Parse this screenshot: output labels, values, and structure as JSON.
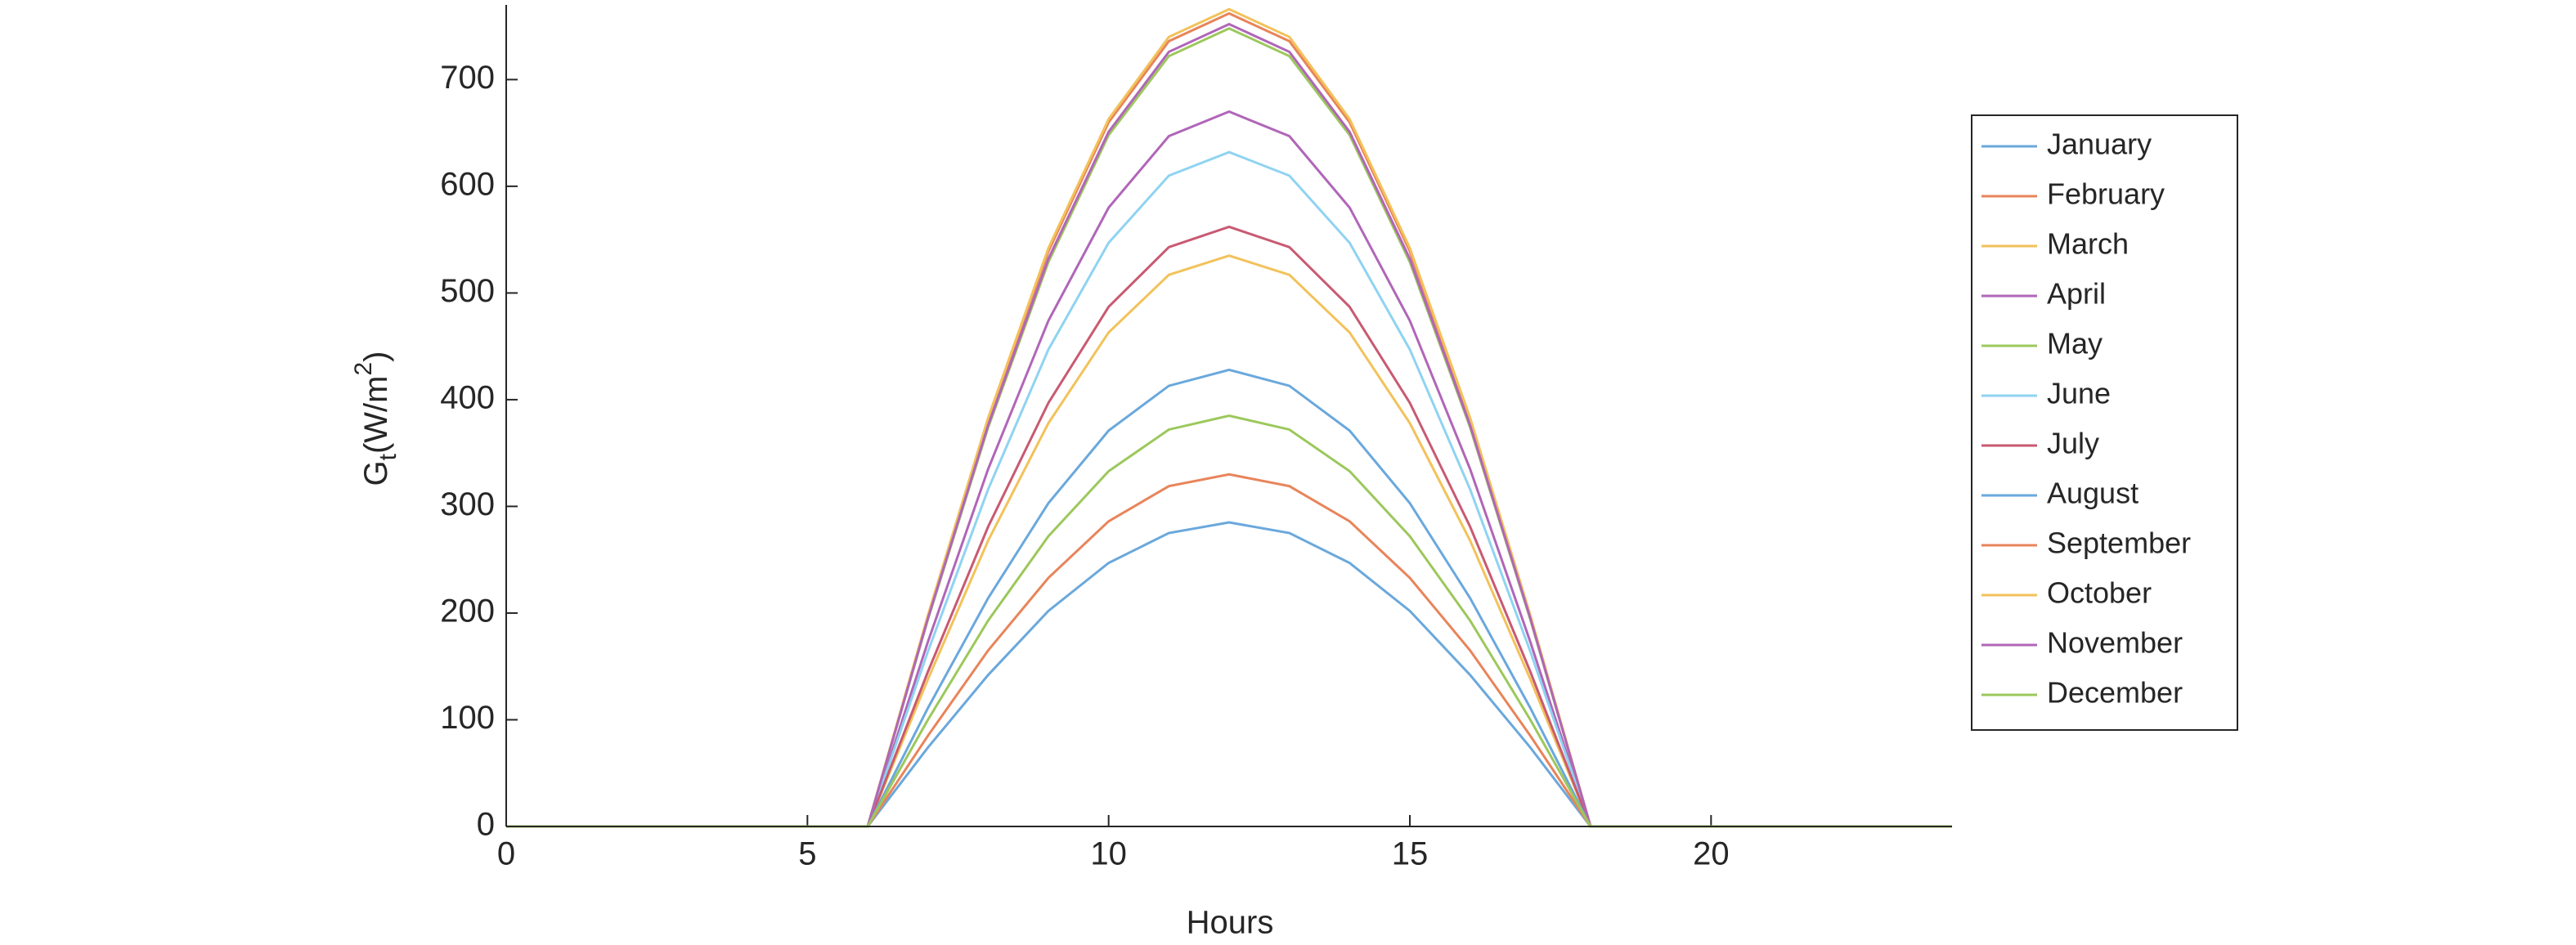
{
  "chart_data": {
    "type": "line",
    "x_label": "Hours",
    "y_label": [
      "G",
      "t",
      "(W/m",
      "2",
      ")"
    ],
    "x": [
      0,
      6,
      7,
      8,
      9,
      10,
      11,
      12,
      13,
      14,
      15,
      16,
      17,
      18,
      24
    ],
    "series": [
      {
        "name": "January",
        "color": "#6aa8dc",
        "values": [
          0,
          0,
          74,
          142,
          202,
          247,
          275,
          285,
          275,
          247,
          202,
          142,
          74,
          0,
          0
        ]
      },
      {
        "name": "February",
        "color": "#e8845a",
        "values": [
          0,
          0,
          85,
          165,
          233,
          286,
          319,
          330,
          319,
          286,
          233,
          165,
          85,
          0,
          0
        ]
      },
      {
        "name": "March",
        "color": "#f2c25a",
        "values": [
          0,
          0,
          138,
          268,
          378,
          463,
          517,
          535,
          517,
          463,
          378,
          268,
          138,
          0,
          0
        ]
      },
      {
        "name": "April",
        "color": "#b066b8",
        "values": [
          0,
          0,
          173,
          335,
          474,
          580,
          647,
          670,
          647,
          580,
          474,
          335,
          173,
          0,
          0
        ]
      },
      {
        "name": "May",
        "color": "#9cc85c",
        "values": [
          0,
          0,
          194,
          374,
          529,
          648,
          722,
          748,
          722,
          648,
          529,
          374,
          194,
          0,
          0
        ]
      },
      {
        "name": "June",
        "color": "#8fd3f2",
        "values": [
          0,
          0,
          164,
          316,
          447,
          547,
          610,
          632,
          610,
          547,
          447,
          316,
          164,
          0,
          0
        ]
      },
      {
        "name": "July",
        "color": "#c85a72",
        "values": [
          0,
          0,
          145,
          281,
          397,
          487,
          543,
          562,
          543,
          487,
          397,
          281,
          145,
          0,
          0
        ]
      },
      {
        "name": "August",
        "color": "#6aa8dc",
        "values": [
          0,
          0,
          111,
          214,
          303,
          371,
          413,
          428,
          413,
          371,
          303,
          214,
          111,
          0,
          0
        ]
      },
      {
        "name": "September",
        "color": "#e8845a",
        "values": [
          0,
          0,
          197,
          381,
          539,
          660,
          736,
          762,
          736,
          660,
          539,
          381,
          197,
          0,
          0
        ]
      },
      {
        "name": "October",
        "color": "#f2c25a",
        "values": [
          0,
          0,
          198,
          383,
          542,
          663,
          740,
          766,
          740,
          663,
          542,
          383,
          198,
          0,
          0
        ]
      },
      {
        "name": "November",
        "color": "#b066b8",
        "values": [
          0,
          0,
          195,
          376,
          532,
          651,
          726,
          752,
          726,
          651,
          532,
          376,
          195,
          0,
          0
        ]
      },
      {
        "name": "December",
        "color": "#9cc85c",
        "values": [
          0,
          0,
          100,
          193,
          272,
          333,
          372,
          385,
          372,
          333,
          272,
          193,
          100,
          0,
          0
        ]
      }
    ],
    "xlim": [
      0,
      24
    ],
    "xticks": [
      0,
      5,
      10,
      15,
      20
    ],
    "ylim": [
      0,
      770
    ],
    "yticks": [
      0,
      100,
      200,
      300,
      400,
      500,
      600,
      700
    ],
    "grid": false,
    "legend": "right"
  }
}
